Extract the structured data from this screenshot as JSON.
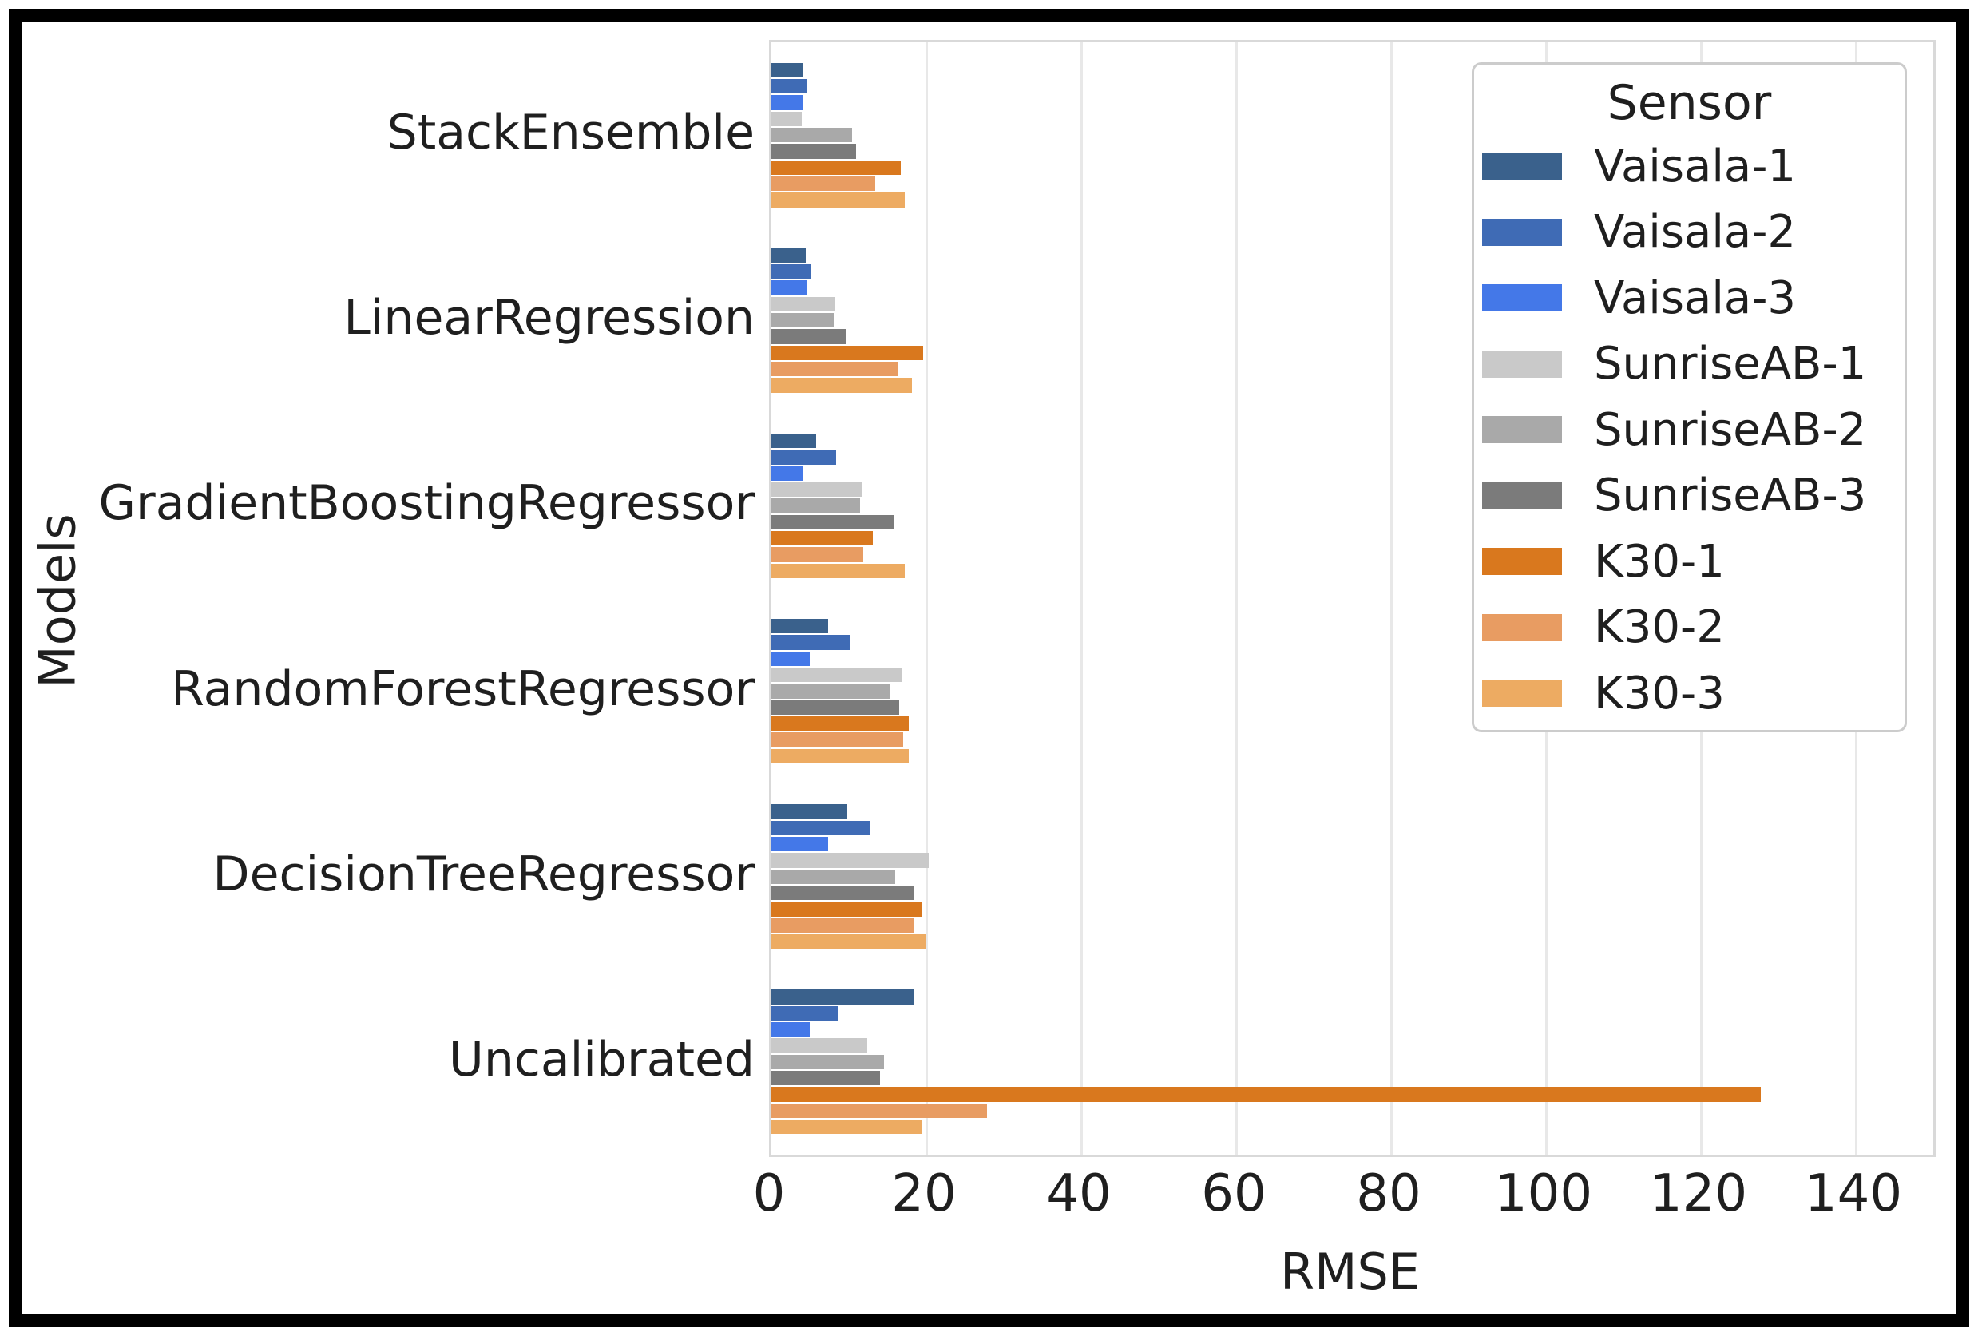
{
  "figure": {
    "background": "#ffffff",
    "border_color": "#000000",
    "grid_color": "#e8e8e8",
    "spine_color": "#d9d9d9",
    "text_color": "#1f1f1f"
  },
  "chart_data": {
    "type": "bar",
    "orientation": "horizontal",
    "xlabel": "RMSE",
    "ylabel": "Models",
    "xlim": [
      0,
      150
    ],
    "xticks": [
      0,
      20,
      40,
      60,
      80,
      100,
      120,
      140
    ],
    "grid": true,
    "legend_title": "Sensor",
    "legend_position": "upper right",
    "categories": [
      "StackEnsemble",
      "LinearRegression",
      "GradientBoostingRegressor",
      "RandomForestRegressor",
      "DecisionTreeRegressor",
      "Uncalibrated"
    ],
    "series": [
      {
        "name": "Vaisala-1",
        "color": "#3A618C",
        "values": [
          4.0,
          4.4,
          5.8,
          7.3,
          9.8,
          18.5
        ]
      },
      {
        "name": "Vaisala-2",
        "color": "#3F6BB5",
        "values": [
          4.6,
          5.1,
          8.4,
          10.2,
          12.7,
          8.6
        ]
      },
      {
        "name": "Vaisala-3",
        "color": "#4478E8",
        "values": [
          4.1,
          4.6,
          4.1,
          4.9,
          7.3,
          4.9
        ]
      },
      {
        "name": "SunriseAB-1",
        "color": "#C9C9C9",
        "values": [
          3.9,
          8.2,
          11.7,
          16.8,
          20.3,
          12.4
        ]
      },
      {
        "name": "SunriseAB-2",
        "color": "#A9A9A9",
        "values": [
          10.4,
          8.0,
          11.4,
          15.4,
          16.0,
          14.5
        ]
      },
      {
        "name": "SunriseAB-3",
        "color": "#7B7B7B",
        "values": [
          10.9,
          9.6,
          15.8,
          16.5,
          18.4,
          14.0
        ]
      },
      {
        "name": "K30-1",
        "color": "#D9781E",
        "values": [
          16.7,
          19.6,
          13.1,
          17.7,
          19.4,
          127.7
        ]
      },
      {
        "name": "K30-2",
        "color": "#E89C62",
        "values": [
          13.4,
          16.3,
          11.9,
          17.0,
          18.3,
          27.8
        ]
      },
      {
        "name": "K30-3",
        "color": "#EDAB62",
        "values": [
          17.2,
          18.1,
          17.2,
          17.7,
          20.0,
          19.4
        ]
      }
    ]
  }
}
